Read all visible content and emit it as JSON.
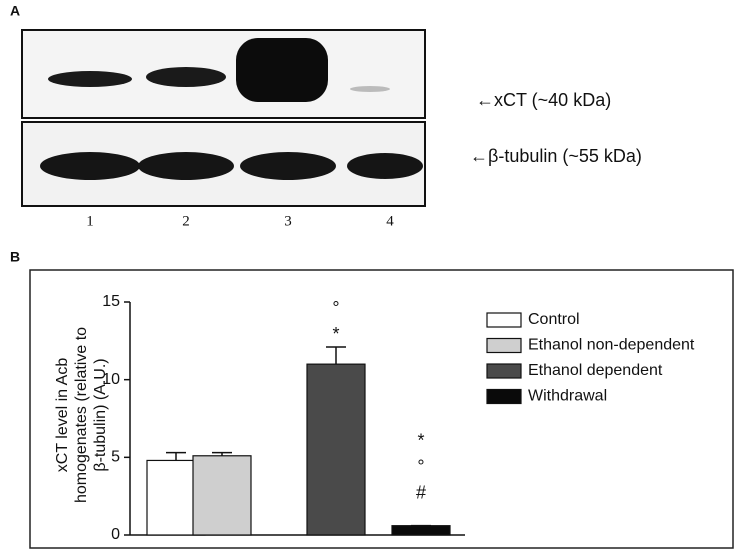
{
  "panel_a": {
    "label": "A",
    "lanes": [
      "1",
      "2",
      "3",
      "4"
    ],
    "bands": [
      "←xCT (~40 kDa)",
      "←β-tubulin (~55 kDa)"
    ]
  },
  "panel_b_label": "B",
  "chart_data": {
    "type": "bar",
    "y_label": [
      "xCT level in Acb",
      "homogenates (relative to",
      "β-tubulin) (A.U.)"
    ],
    "categories": [
      "Control",
      "Ethanol non-dependent",
      "Ethanol dependent",
      "Withdrawal"
    ],
    "values": [
      4.8,
      5.1,
      11.0,
      0.6
    ],
    "errors": [
      0.5,
      0.2,
      1.1,
      0
    ],
    "colors": [
      "#ffffff",
      "#cfcfcf",
      "#4a4a4a",
      "#0a0a0a"
    ],
    "annotations": [
      [],
      [],
      [
        "°",
        "*"
      ],
      [
        "*",
        "°",
        "#"
      ]
    ],
    "ylim": [
      0,
      15
    ],
    "yticks": [
      0,
      5,
      10,
      15
    ],
    "grid": false,
    "legend": "right"
  }
}
